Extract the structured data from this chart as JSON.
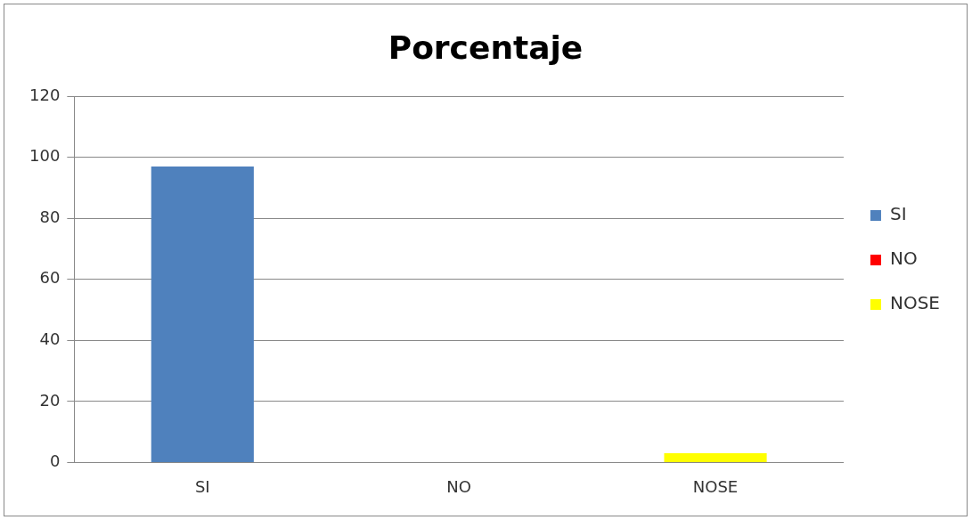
{
  "chart_data": {
    "type": "bar",
    "title": "Porcentaje",
    "categories": [
      "SI",
      "NO",
      "NOSE"
    ],
    "series": [
      {
        "name": "SI",
        "color": "#4f81bd",
        "values": [
          97,
          null,
          null
        ]
      },
      {
        "name": "NO",
        "color": "#ff0000",
        "values": [
          null,
          0,
          null
        ]
      },
      {
        "name": "NOSE",
        "color": "#ffff00",
        "values": [
          null,
          null,
          3
        ]
      }
    ],
    "ylim": [
      0,
      120
    ],
    "yticks": [
      0,
      20,
      40,
      60,
      80,
      100,
      120
    ],
    "grid": "y",
    "legend": "right"
  }
}
